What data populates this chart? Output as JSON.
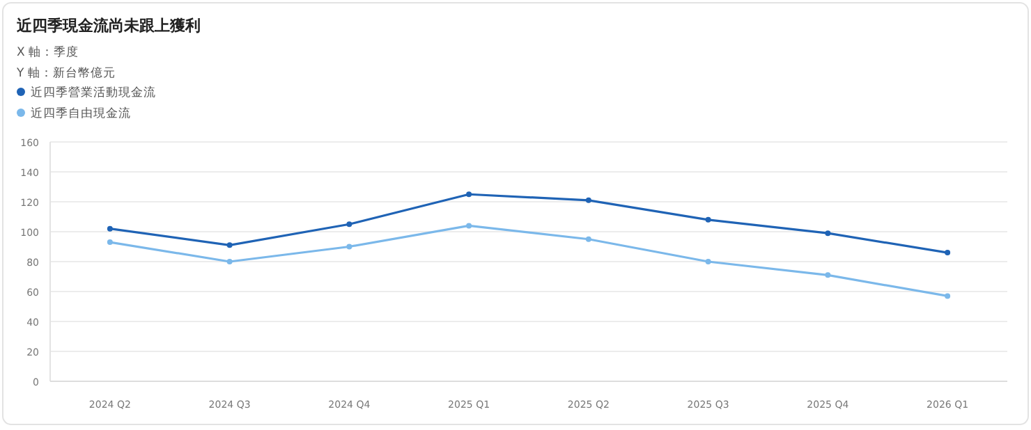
{
  "chart_data": {
    "type": "line",
    "title": "近四季現金流尚未跟上獲利",
    "annotations": [
      "X 軸：季度",
      "Y 軸：新台幣億元"
    ],
    "categories": [
      "2024 Q2",
      "2024 Q3",
      "2024 Q4",
      "2025 Q1",
      "2025 Q2",
      "2025 Q3",
      "2025 Q4",
      "2026 Q1"
    ],
    "series": [
      {
        "name": "近四季營業活動現金流",
        "color": "#1f63b5",
        "values": [
          102,
          91,
          105,
          125,
          121,
          108,
          99,
          86
        ]
      },
      {
        "name": "近四季自由現金流",
        "color": "#7bb8ea",
        "values": [
          93,
          80,
          90,
          104,
          95,
          80,
          71,
          57
        ]
      }
    ],
    "ylim": [
      0,
      160
    ],
    "yticks": [
      0,
      20,
      40,
      60,
      80,
      100,
      120,
      140,
      160
    ],
    "grid": "y",
    "legend": "top left",
    "marker": "circle",
    "line_style": "solid"
  }
}
